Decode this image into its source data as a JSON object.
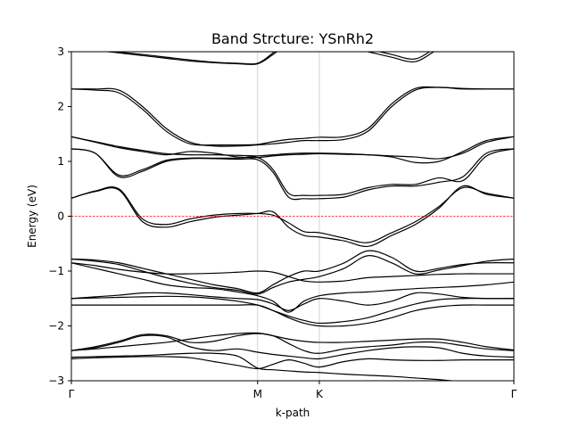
{
  "chart_data": {
    "type": "line",
    "title": "Band Strcture: YSnRh2",
    "xlabel": "k-path",
    "ylabel": "Energy (eV)",
    "ylim": [
      -3,
      3
    ],
    "xlim": [
      0,
      3.73
    ],
    "yticks": [
      -3,
      -2,
      -1,
      0,
      1,
      2,
      3
    ],
    "xticks": [
      {
        "label": "Γ",
        "x": 0
      },
      {
        "label": "M",
        "x": 1.57
      },
      {
        "label": "K",
        "x": 2.09
      },
      {
        "label": "Γ",
        "x": 3.73
      }
    ],
    "fermi_level": 0,
    "fermi_color": "#ff0000",
    "vertical_lines": [
      1.57,
      2.09
    ],
    "x": [
      0,
      0.2,
      0.4,
      0.6,
      0.8,
      1.0,
      1.2,
      1.4,
      1.57,
      1.7,
      1.83,
      1.96,
      2.09,
      2.3,
      2.5,
      2.7,
      2.9,
      3.1,
      3.3,
      3.5,
      3.73
    ],
    "series": [
      {
        "values": [
          -2.57,
          -2.56,
          -2.55,
          -2.54,
          -2.52,
          -2.5,
          -2.5,
          -2.55,
          -2.77,
          -2.8,
          -2.82,
          -2.84,
          -2.85,
          -2.88,
          -2.9,
          -2.92,
          -2.95,
          -2.98,
          -3.02,
          -3.05,
          -3.08
        ]
      },
      {
        "values": [
          -2.6,
          -2.58,
          -2.57,
          -2.56,
          -2.56,
          -2.58,
          -2.65,
          -2.72,
          -2.78,
          -2.7,
          -2.62,
          -2.68,
          -2.75,
          -2.65,
          -2.6,
          -2.62,
          -2.63,
          -2.63,
          -2.62,
          -2.62,
          -2.62
        ]
      },
      {
        "values": [
          -2.45,
          -2.4,
          -2.3,
          -2.18,
          -2.2,
          -2.38,
          -2.45,
          -2.42,
          -2.48,
          -2.52,
          -2.55,
          -2.58,
          -2.6,
          -2.52,
          -2.45,
          -2.4,
          -2.38,
          -2.4,
          -2.5,
          -2.55,
          -2.57
        ]
      },
      {
        "values": [
          -2.45,
          -2.38,
          -2.28,
          -2.16,
          -2.18,
          -2.3,
          -2.28,
          -2.18,
          -2.14,
          -2.18,
          -2.32,
          -2.45,
          -2.5,
          -2.42,
          -2.38,
          -2.35,
          -2.3,
          -2.3,
          -2.36,
          -2.42,
          -2.45
        ]
      },
      {
        "values": [
          -2.45,
          -2.42,
          -2.38,
          -2.34,
          -2.3,
          -2.24,
          -2.18,
          -2.14,
          -2.13,
          -2.18,
          -2.24,
          -2.28,
          -2.3,
          -2.3,
          -2.28,
          -2.26,
          -2.24,
          -2.24,
          -2.3,
          -2.38,
          -2.44
        ]
      },
      {
        "values": [
          -1.62,
          -1.62,
          -1.62,
          -1.62,
          -1.62,
          -1.62,
          -1.62,
          -1.62,
          -1.62,
          -1.72,
          -1.85,
          -1.95,
          -2.0,
          -2.0,
          -1.95,
          -1.85,
          -1.72,
          -1.65,
          -1.62,
          -1.62,
          -1.62
        ]
      },
      {
        "values": [
          -1.5,
          -1.49,
          -1.48,
          -1.47,
          -1.46,
          -1.47,
          -1.5,
          -1.55,
          -1.62,
          -1.72,
          -1.82,
          -1.9,
          -1.95,
          -1.92,
          -1.85,
          -1.72,
          -1.6,
          -1.52,
          -1.5,
          -1.5,
          -1.5
        ]
      },
      {
        "values": [
          -1.5,
          -1.47,
          -1.44,
          -1.4,
          -1.4,
          -1.43,
          -1.47,
          -1.5,
          -1.52,
          -1.6,
          -1.72,
          -1.6,
          -1.5,
          -1.55,
          -1.62,
          -1.55,
          -1.4,
          -1.42,
          -1.48,
          -1.5,
          -1.5
        ]
      },
      {
        "values": [
          -0.85,
          -0.95,
          -1.05,
          -1.15,
          -1.25,
          -1.3,
          -1.32,
          -1.38,
          -1.45,
          -1.55,
          -1.75,
          -1.55,
          -1.45,
          -1.4,
          -1.38,
          -1.35,
          -1.32,
          -1.3,
          -1.28,
          -1.25,
          -1.2
        ]
      },
      {
        "values": [
          -0.78,
          -0.82,
          -0.88,
          -1.0,
          -1.12,
          -1.22,
          -1.3,
          -1.35,
          -1.42,
          -1.3,
          -1.2,
          -1.15,
          -1.1,
          -0.95,
          -0.72,
          -0.85,
          -1.05,
          -0.98,
          -0.9,
          -0.82,
          -0.78
        ]
      },
      {
        "values": [
          -0.78,
          -0.8,
          -0.85,
          -0.95,
          -1.05,
          -1.15,
          -1.25,
          -1.32,
          -1.4,
          -1.25,
          -1.1,
          -1.0,
          -1.0,
          -0.85,
          -0.63,
          -0.75,
          -1.0,
          -0.95,
          -0.88,
          -0.85,
          -0.85
        ]
      },
      {
        "values": [
          -0.85,
          -0.9,
          -0.97,
          -1.02,
          -1.05,
          -1.05,
          -1.04,
          -1.02,
          -1.0,
          -1.02,
          -1.1,
          -1.18,
          -1.2,
          -1.18,
          -1.12,
          -1.1,
          -1.08,
          -1.06,
          -1.05,
          -1.05,
          -1.05
        ]
      },
      {
        "values": [
          0.33,
          0.45,
          0.48,
          -0.1,
          -0.2,
          -0.1,
          -0.02,
          0.02,
          0.05,
          0.08,
          -0.2,
          -0.35,
          -0.38,
          -0.45,
          -0.55,
          -0.35,
          -0.15,
          0.15,
          0.55,
          0.4,
          0.33
        ]
      },
      {
        "values": [
          0.33,
          0.46,
          0.5,
          -0.05,
          -0.15,
          -0.05,
          0.02,
          0.05,
          0.05,
          0.02,
          -0.12,
          -0.28,
          -0.3,
          -0.4,
          -0.48,
          -0.3,
          -0.1,
          0.18,
          0.52,
          0.42,
          0.33
        ]
      },
      {
        "values": [
          1.23,
          1.15,
          0.72,
          0.82,
          1.0,
          1.05,
          1.05,
          1.04,
          1.03,
          0.8,
          0.35,
          0.32,
          0.32,
          0.35,
          0.48,
          0.55,
          0.55,
          0.62,
          0.72,
          1.15,
          1.23
        ]
      },
      {
        "values": [
          1.23,
          1.15,
          0.75,
          0.85,
          1.02,
          1.06,
          1.06,
          1.06,
          1.07,
          0.85,
          0.42,
          0.38,
          0.38,
          0.4,
          0.52,
          0.58,
          0.58,
          0.7,
          0.65,
          1.1,
          1.23
        ]
      },
      {
        "values": [
          1.45,
          1.35,
          1.25,
          1.18,
          1.12,
          1.18,
          1.15,
          1.08,
          1.07,
          1.1,
          1.12,
          1.13,
          1.14,
          1.13,
          1.12,
          1.1,
          1.08,
          1.05,
          1.15,
          1.35,
          1.45
        ]
      },
      {
        "values": [
          1.45,
          1.36,
          1.27,
          1.2,
          1.14,
          1.12,
          1.12,
          1.11,
          1.1,
          1.12,
          1.14,
          1.15,
          1.15,
          1.14,
          1.12,
          1.08,
          0.98,
          1.0,
          1.18,
          1.38,
          1.45
        ]
      },
      {
        "values": [
          2.32,
          2.32,
          2.3,
          2.0,
          1.6,
          1.35,
          1.28,
          1.28,
          1.3,
          1.32,
          1.35,
          1.38,
          1.38,
          1.4,
          1.55,
          2.0,
          2.3,
          2.35,
          2.32,
          2.32,
          2.32
        ]
      },
      {
        "values": [
          2.32,
          2.3,
          2.25,
          1.95,
          1.55,
          1.32,
          1.3,
          1.3,
          1.31,
          1.36,
          1.4,
          1.42,
          1.44,
          1.45,
          1.6,
          2.05,
          2.33,
          2.35,
          2.33,
          2.32,
          2.32
        ]
      },
      {
        "values": [
          3.05,
          3.02,
          2.98,
          2.93,
          2.88,
          2.83,
          2.8,
          2.78,
          2.78,
          2.95,
          3.15,
          3.2,
          3.2,
          3.1,
          3.0,
          2.9,
          2.82,
          3.05,
          3.15,
          3.2,
          3.2
        ]
      },
      {
        "values": [
          3.05,
          3.02,
          2.99,
          2.95,
          2.9,
          2.85,
          2.81,
          2.79,
          2.79,
          2.98,
          3.2,
          3.25,
          3.25,
          3.15,
          3.05,
          2.95,
          2.87,
          3.1,
          3.2,
          3.25,
          3.25
        ]
      }
    ]
  }
}
